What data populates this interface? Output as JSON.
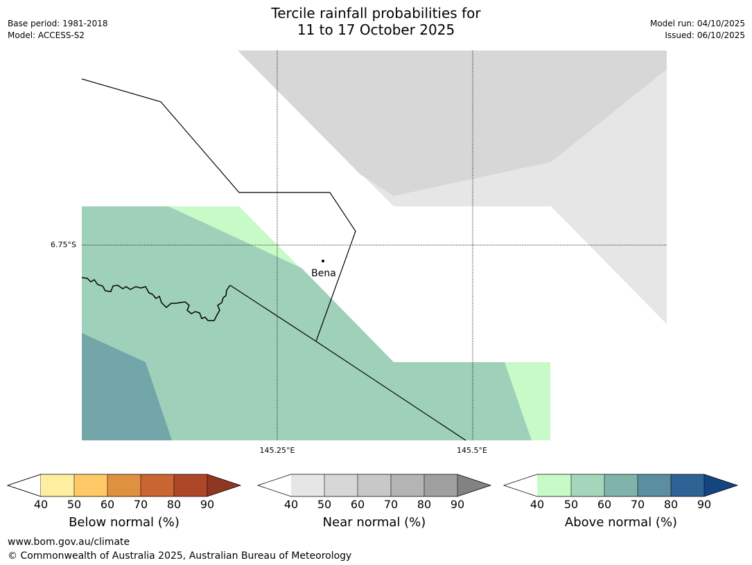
{
  "header": {
    "title_line1": "Tercile rainfall probabilities for",
    "title_line2": "11 to 17 October 2025",
    "base_period": "Base period: 1981-2018",
    "model": "Model: ACCESS-S2",
    "model_run": "Model run: 04/10/2025",
    "issued": "Issued: 06/10/2025"
  },
  "map": {
    "gridlines": {
      "lat_label": "6.75°S",
      "lon_labels": [
        "145.25°E",
        "145.5°E"
      ]
    },
    "place": {
      "name": "Bena"
    },
    "colors": {
      "near_50": "#d7d7d7",
      "near_40": "#e6e6e6",
      "above_40": "#c8fac8",
      "above_50": "#9fd0ba",
      "above_60": "#72a6a9",
      "border": "#000000"
    }
  },
  "legends": [
    {
      "title": "Below normal (%)",
      "ticks": [
        "40",
        "50",
        "60",
        "70",
        "80",
        "90"
      ],
      "colors": [
        "#ffeda0",
        "#fec966",
        "#e0913f",
        "#ca6431",
        "#ae4728",
        "#8e3823"
      ]
    },
    {
      "title": "Near normal (%)",
      "ticks": [
        "40",
        "50",
        "60",
        "70",
        "80",
        "90"
      ],
      "colors": [
        "#e6e6e6",
        "#d7d7d7",
        "#c8c8c8",
        "#b4b4b4",
        "#a0a0a0",
        "#828282"
      ]
    },
    {
      "title": "Above normal (%)",
      "ticks": [
        "40",
        "50",
        "60",
        "70",
        "80",
        "90"
      ],
      "colors": [
        "#c8fac8",
        "#a4d6bb",
        "#80b4ab",
        "#5b8ea0",
        "#2f6295",
        "#15457f"
      ]
    }
  ],
  "footer": {
    "website": "www.bom.gov.au/climate",
    "copyright": "© Commonwealth of Australia 2025, Australian Bureau of Meteorology"
  }
}
